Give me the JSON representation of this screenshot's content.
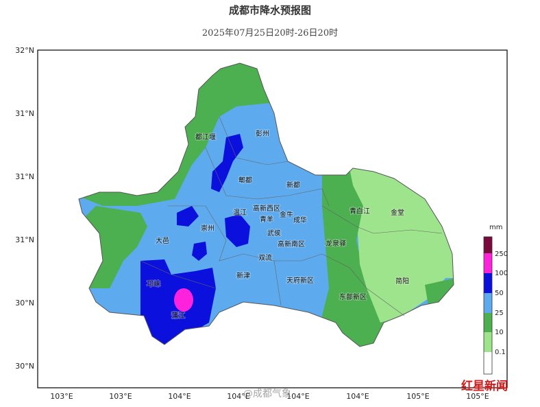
{
  "header": {
    "title": "成都市降水预报图",
    "subtitle": "2025年07月25日20时-26日20时"
  },
  "axes": {
    "lat_labels": [
      "32°N",
      "31°N",
      "31°N",
      "31°N",
      "30°N",
      "30°N"
    ],
    "lon_labels": [
      "103°E",
      "103°E",
      "104°E",
      "104°E",
      "104°E",
      "104°E",
      "105°E",
      "105°E"
    ]
  },
  "districts": [
    "彭州",
    "都江堰",
    "郫都",
    "新都",
    "温江",
    "高新西区",
    "青羊",
    "金牛",
    "成华",
    "崇州",
    "大邑",
    "武侯",
    "高新南区",
    "龙泉驿",
    "青白江",
    "金堂",
    "双流",
    "新津",
    "天府新区",
    "邛崃",
    "蒲江",
    "东部新区",
    "简阳"
  ],
  "legend": {
    "unit": "mm",
    "labels": [
      250,
      100,
      50,
      25,
      10,
      0.1
    ]
  },
  "watermark": "@成都气象",
  "logo": "红星新闻"
}
